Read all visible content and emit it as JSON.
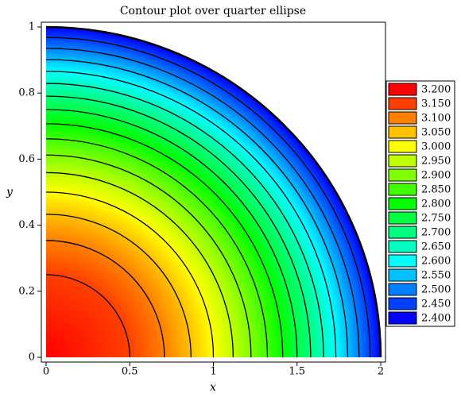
{
  "chart_data": {
    "type": "contour",
    "title": "Contour plot over quarter ellipse",
    "xlabel": "x",
    "ylabel": "y",
    "xlim": [
      0,
      2
    ],
    "ylim": [
      0,
      1
    ],
    "xticks": [
      0,
      0.5,
      1,
      1.5,
      2
    ],
    "yticks": [
      0,
      0.2,
      0.4,
      0.6,
      0.8,
      1
    ],
    "levels": [
      {
        "value": 3.2,
        "label": "3.200"
      },
      {
        "value": 3.15,
        "label": "3.150"
      },
      {
        "value": 3.1,
        "label": "3.100"
      },
      {
        "value": 3.05,
        "label": "3.050"
      },
      {
        "value": 3.0,
        "label": "3.000"
      },
      {
        "value": 2.95,
        "label": "2.950"
      },
      {
        "value": 2.9,
        "label": "2.900"
      },
      {
        "value": 2.85,
        "label": "2.850"
      },
      {
        "value": 2.8,
        "label": "2.800"
      },
      {
        "value": 2.75,
        "label": "2.750"
      },
      {
        "value": 2.7,
        "label": "2.700"
      },
      {
        "value": 2.65,
        "label": "2.650"
      },
      {
        "value": 2.6,
        "label": "2.600"
      },
      {
        "value": 2.55,
        "label": "2.550"
      },
      {
        "value": 2.5,
        "label": "2.500"
      },
      {
        "value": 2.45,
        "label": "2.450"
      },
      {
        "value": 2.4,
        "label": "2.400"
      }
    ],
    "colors": [
      "#ff0000",
      "#ff4000",
      "#ff8000",
      "#ffc000",
      "#ffff00",
      "#c0ff00",
      "#80ff00",
      "#40ff00",
      "#00ff00",
      "#00ff40",
      "#00ff80",
      "#00ffc0",
      "#00ffff",
      "#00c0ff",
      "#0080ff",
      "#0040ff",
      "#0000ff"
    ]
  }
}
